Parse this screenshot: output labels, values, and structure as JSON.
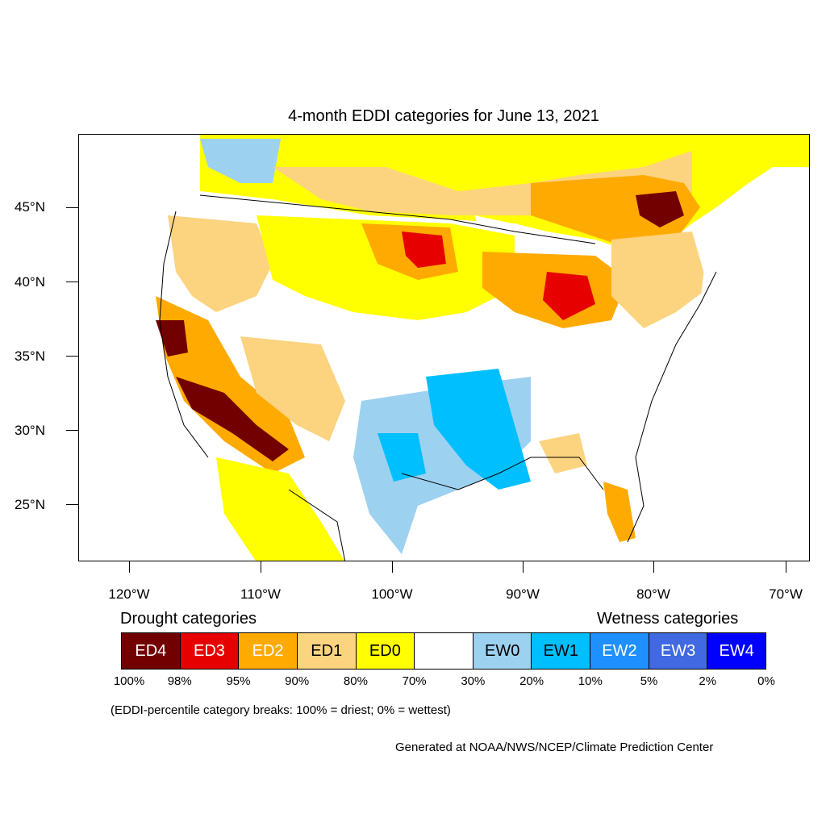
{
  "title": "4-month EDDI categories for June 13, 2021",
  "lat_labels": [
    "45°N",
    "40°N",
    "35°N",
    "30°N",
    "25°N"
  ],
  "lon_labels": [
    "120°W",
    "110°W",
    "100°W",
    "90°W",
    "80°W",
    "70°W"
  ],
  "legend": {
    "drought_heading": "Drought categories",
    "wetness_heading": "Wetness categories",
    "categories": [
      {
        "label": "ED4",
        "color": "#730000",
        "text_color": "#ffffff"
      },
      {
        "label": "ED3",
        "color": "#e60000",
        "text_color": "#ffffff"
      },
      {
        "label": "ED2",
        "color": "#ffaa00",
        "text_color": "#ffffff"
      },
      {
        "label": "ED1",
        "color": "#fcd37f",
        "text_color": "#000000"
      },
      {
        "label": "ED0",
        "color": "#ffff00",
        "text_color": "#000000"
      },
      {
        "label": "",
        "color": "#ffffff",
        "text_color": "#000000"
      },
      {
        "label": "EW0",
        "color": "#9dd1f0",
        "text_color": "#000000"
      },
      {
        "label": "EW1",
        "color": "#00bfff",
        "text_color": "#000000"
      },
      {
        "label": "EW2",
        "color": "#1e90ff",
        "text_color": "#ffffff"
      },
      {
        "label": "EW3",
        "color": "#4169e1",
        "text_color": "#ffffff"
      },
      {
        "label": "EW4",
        "color": "#0000ff",
        "text_color": "#ffffff"
      }
    ],
    "percent_breaks": [
      "100%",
      "98%",
      "95%",
      "90%",
      "80%",
      "70%",
      "30%",
      "20%",
      "10%",
      "5%",
      "2%",
      "0%"
    ]
  },
  "note": "(EDDI-percentile category breaks: 100% = driest; 0% = wettest)",
  "credit": "Generated at NOAA/NWS/NCEP/Climate Prediction Center"
}
